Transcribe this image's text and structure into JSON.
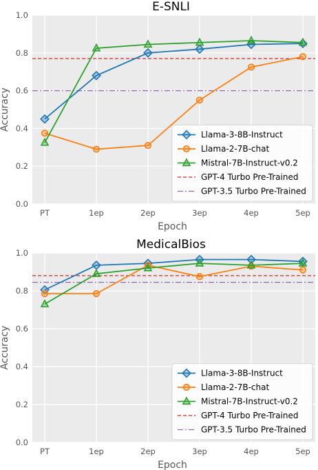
{
  "colors": {
    "plot_bg": "#ebebeb",
    "grid": "#ffffff",
    "llama3": "#1f77b4",
    "llama2": "#ff7f0e",
    "mistral": "#2ca02c",
    "gpt4": "#d62728",
    "gpt35": "#9467bd"
  },
  "chart_data": [
    {
      "type": "line",
      "title": "E-SNLI",
      "xlabel": "Epoch",
      "ylabel": "Accuracy",
      "categories": [
        "PT",
        "1ep",
        "2ep",
        "3ep",
        "4ep",
        "5ep"
      ],
      "ylim": [
        0,
        1
      ],
      "yticks": [
        "0.0",
        "0.2",
        "0.4",
        "0.6",
        "0.8",
        "1.0"
      ],
      "grid": true,
      "legend_position": "lower-right",
      "series": [
        {
          "name": "Llama-3-8B-Instruct",
          "marker": "diamond",
          "color": "#1f77b4",
          "values": [
            0.45,
            0.68,
            0.8,
            0.82,
            0.845,
            0.85
          ]
        },
        {
          "name": "Llama-2-7B-chat",
          "marker": "circle",
          "color": "#ff7f0e",
          "values": [
            0.375,
            0.29,
            0.31,
            0.55,
            0.725,
            0.78
          ]
        },
        {
          "name": "Mistral-7B-Instruct-v0.2",
          "marker": "triangle",
          "color": "#2ca02c",
          "values": [
            0.325,
            0.825,
            0.845,
            0.855,
            0.865,
            0.855
          ]
        }
      ],
      "reference_lines": [
        {
          "name": "GPT-4 Turbo Pre-Trained",
          "style": "dashed",
          "color": "#d62728",
          "value": 0.77
        },
        {
          "name": "GPT-3.5 Turbo Pre-Trained",
          "style": "dashdot",
          "color": "#9467bd",
          "value": 0.6
        }
      ]
    },
    {
      "type": "line",
      "title": "MedicalBios",
      "xlabel": "Epoch",
      "ylabel": "Accuracy",
      "categories": [
        "PT",
        "1ep",
        "2ep",
        "3ep",
        "4ep",
        "5ep"
      ],
      "ylim": [
        0,
        1
      ],
      "yticks": [
        "0.0",
        "0.2",
        "0.4",
        "0.6",
        "0.8",
        "1.0"
      ],
      "grid": true,
      "legend_position": "lower-right",
      "series": [
        {
          "name": "Llama-3-8B-Instruct",
          "marker": "diamond",
          "color": "#1f77b4",
          "values": [
            0.805,
            0.935,
            0.945,
            0.965,
            0.965,
            0.955
          ]
        },
        {
          "name": "Llama-2-7B-chat",
          "marker": "circle",
          "color": "#ff7f0e",
          "values": [
            0.785,
            0.785,
            0.935,
            0.875,
            0.93,
            0.91
          ]
        },
        {
          "name": "Mistral-7B-Instruct-v0.2",
          "marker": "triangle",
          "color": "#2ca02c",
          "values": [
            0.73,
            0.89,
            0.92,
            0.945,
            0.935,
            0.945
          ]
        }
      ],
      "reference_lines": [
        {
          "name": "GPT-4 Turbo Pre-Trained",
          "style": "dashed",
          "color": "#d62728",
          "value": 0.88
        },
        {
          "name": "GPT-3.5 Turbo Pre-Trained",
          "style": "dashdot",
          "color": "#9467bd",
          "value": 0.845
        }
      ]
    }
  ]
}
